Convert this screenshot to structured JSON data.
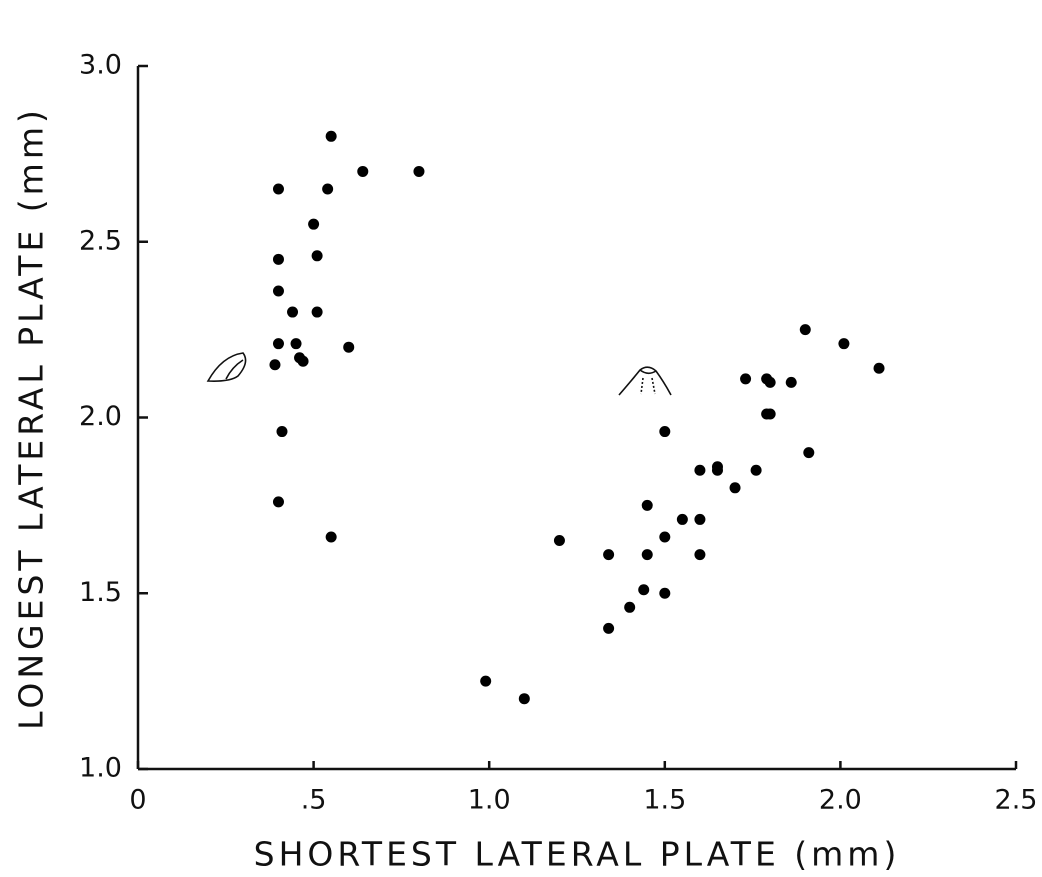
{
  "chart_data": {
    "type": "scatter",
    "xlabel": "SHORTEST LATERAL PLATE (mm)",
    "ylabel": "LONGEST LATERAL PLATE (mm)",
    "color": "#000000",
    "x": [
      0.4,
      0.55,
      0.64,
      0.8,
      0.54,
      0.5,
      0.4,
      0.51,
      0.4,
      0.44,
      0.51,
      0.4,
      0.45,
      0.6,
      0.46,
      0.47,
      0.39,
      0.41,
      0.4,
      0.55,
      0.99,
      1.1,
      1.2,
      1.34,
      1.34,
      1.4,
      1.44,
      1.5,
      1.45,
      1.45,
      1.5,
      1.55,
      1.6,
      1.6,
      1.5,
      1.6,
      1.65,
      1.65,
      1.7,
      1.76,
      1.73,
      1.79,
      1.8,
      1.86,
      1.79,
      1.8,
      1.9,
      2.01,
      2.11,
      1.91
    ],
    "values": [
      2.65,
      2.8,
      2.7,
      2.7,
      2.65,
      2.55,
      2.45,
      2.46,
      2.36,
      2.3,
      2.3,
      2.21,
      2.21,
      2.2,
      2.17,
      2.16,
      2.15,
      1.96,
      1.76,
      1.66,
      1.25,
      1.2,
      1.65,
      1.61,
      1.4,
      1.46,
      1.51,
      1.5,
      1.61,
      1.75,
      1.66,
      1.71,
      1.71,
      1.61,
      1.96,
      1.85,
      1.86,
      1.85,
      1.8,
      1.85,
      2.11,
      2.11,
      2.1,
      2.1,
      2.01,
      2.01,
      2.25,
      2.21,
      2.14,
      1.9
    ],
    "xlim": [
      0,
      2.5
    ],
    "ylim": [
      1.0,
      3.0
    ],
    "xticks": [
      0,
      {
        "value": 0.5,
        "label": ".5"
      },
      {
        "value": 1.0,
        "label": "1.0"
      },
      1.5,
      {
        "value": 2.0,
        "label": "2.0"
      },
      2.5
    ],
    "yticks": [
      {
        "value": 1.0,
        "label": "1.0"
      },
      1.5,
      {
        "value": 2.0,
        "label": "2.0"
      },
      2.5,
      {
        "value": 3.0,
        "label": "3.0"
      }
    ]
  }
}
